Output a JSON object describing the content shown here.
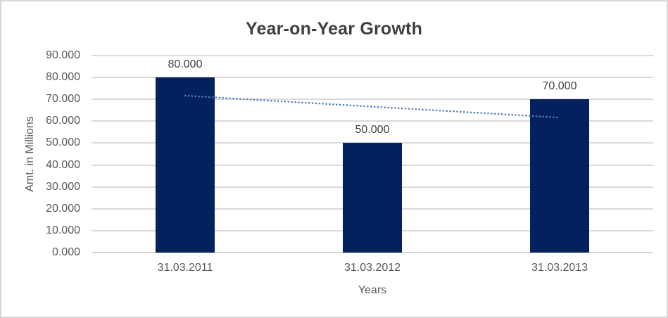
{
  "chart_data": {
    "type": "bar",
    "title": "Year-on-Year Growth",
    "xlabel": "Years",
    "ylabel": "Amt. in Millions",
    "categories": [
      "31.03.2011",
      "31.03.2012",
      "31.03.2013"
    ],
    "values": [
      80,
      50,
      70
    ],
    "data_labels": [
      "80.000",
      "50.000",
      "70.000"
    ],
    "ylim": [
      0,
      90
    ],
    "ytick_step": 10,
    "ytick_labels": [
      "0.000",
      "10.000",
      "20.000",
      "30.000",
      "40.000",
      "50.000",
      "60.000",
      "70.000",
      "80.000",
      "90.000"
    ],
    "grid": true,
    "legend": "none",
    "trendline": {
      "type": "linear",
      "style": "dotted",
      "start_value": 71.67,
      "end_value": 61.67
    },
    "colors": {
      "bar": "#03215c",
      "trendline": "#4f81bd",
      "gridline": "#d9d9d9",
      "title_text": "#3f3f3f",
      "axis_text": "#595959",
      "data_label_text": "#404040",
      "frame_border": "#d6d6d9",
      "background": "#ffffff"
    }
  }
}
